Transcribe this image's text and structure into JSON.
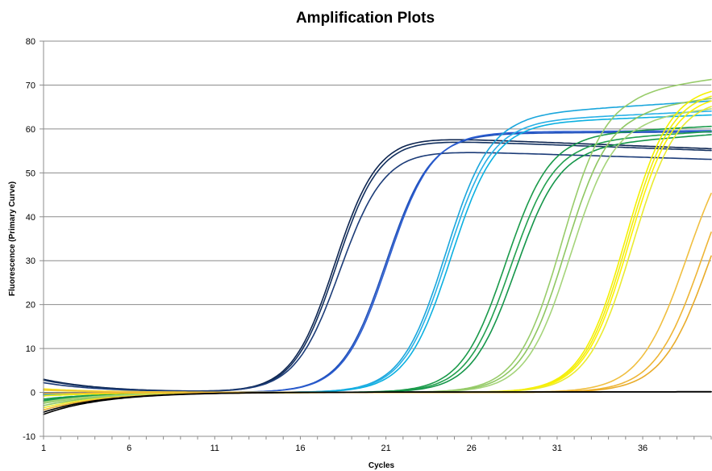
{
  "chart_data": {
    "type": "line",
    "title": "Amplification Plots",
    "xlabel": "Cycles",
    "ylabel": "Fluorescence (Primary Curve)",
    "xlim": [
      1,
      40
    ],
    "ylim": [
      -10,
      80
    ],
    "x_ticks": [
      1,
      6,
      11,
      16,
      21,
      26,
      31,
      36
    ],
    "y_ticks": [
      -10,
      0,
      10,
      20,
      30,
      40,
      50,
      60,
      70,
      80
    ],
    "grid": true,
    "legend": "none",
    "series": [
      {
        "color": "#0d2550",
        "ct": 18.0,
        "plateau": 58.2,
        "drift": -0.15,
        "start": 3.0,
        "slope": 1.25
      },
      {
        "color": "#13305f",
        "ct": 18.1,
        "plateau": 57.6,
        "drift": -0.14,
        "start": 2.8,
        "slope": 1.25
      },
      {
        "color": "#1c3c78",
        "ct": 18.3,
        "plateau": 55.2,
        "drift": -0.12,
        "start": 2.2,
        "slope": 1.3
      },
      {
        "color": "#1f4fb8",
        "ct": 21.0,
        "plateau": 59.0,
        "drift": 0.02,
        "start": -0.2,
        "slope": 1.3
      },
      {
        "color": "#2a5cd0",
        "ct": 21.1,
        "plateau": 59.3,
        "drift": 0.02,
        "start": -0.5,
        "slope": 1.3
      },
      {
        "color": "#1aa6dc",
        "ct": 24.5,
        "plateau": 63.5,
        "drift": 0.25,
        "start": -0.6,
        "slope": 1.3
      },
      {
        "color": "#28b0e6",
        "ct": 24.6,
        "plateau": 62.0,
        "drift": 0.18,
        "start": -0.8,
        "slope": 1.3
      },
      {
        "color": "#0bb0e0",
        "ct": 24.8,
        "plateau": 61.5,
        "drift": 0.15,
        "start": -0.4,
        "slope": 1.3
      },
      {
        "color": "#1a9a4a",
        "ct": 28.0,
        "plateau": 59.0,
        "drift": 0.2,
        "start": -1.5,
        "slope": 1.3
      },
      {
        "color": "#22a04f",
        "ct": 28.3,
        "plateau": 57.5,
        "drift": 0.25,
        "start": -2.0,
        "slope": 1.3
      },
      {
        "color": "#15964a",
        "ct": 28.6,
        "plateau": 56.5,
        "drift": 0.3,
        "start": -1.8,
        "slope": 1.3
      },
      {
        "color": "#98cc6a",
        "ct": 31.3,
        "plateau": 69.0,
        "drift": 0.5,
        "start": -2.5,
        "slope": 1.3
      },
      {
        "color": "#8fc762",
        "ct": 31.5,
        "plateau": 65.0,
        "drift": 0.45,
        "start": -3.0,
        "slope": 1.3
      },
      {
        "color": "#a5d47a",
        "ct": 31.8,
        "plateau": 63.0,
        "drift": 0.4,
        "start": -2.2,
        "slope": 1.3
      },
      {
        "color": "#f5f000",
        "ct": 35.0,
        "plateau": 70.0,
        "drift": 0.0,
        "start": 0.8,
        "slope": 1.3
      },
      {
        "color": "#f0ec10",
        "ct": 35.1,
        "plateau": 69.0,
        "drift": 0.0,
        "start": 0.5,
        "slope": 1.3
      },
      {
        "color": "#fff200",
        "ct": 35.2,
        "plateau": 68.0,
        "drift": 0.0,
        "start": -0.8,
        "slope": 1.3
      },
      {
        "color": "#eaeb30",
        "ct": 35.4,
        "plateau": 67.0,
        "drift": 0.0,
        "start": -3.5,
        "slope": 1.3
      },
      {
        "color": "#f0bf40",
        "ct": 38.6,
        "plateau": 62.0,
        "drift": 0.0,
        "start": 0.6,
        "slope": 1.4
      },
      {
        "color": "#eeb535",
        "ct": 39.5,
        "plateau": 62.0,
        "drift": 0.0,
        "start": -0.3,
        "slope": 1.4
      },
      {
        "color": "#e9ac2a",
        "ct": 39.9,
        "plateau": 60.0,
        "drift": 0.0,
        "start": -4.0,
        "slope": 1.4
      },
      {
        "color": "#000000",
        "ct": 99.0,
        "plateau": 0.0,
        "drift": 0.02,
        "start": -5.0,
        "slope": 1.0
      },
      {
        "color": "#000000",
        "ct": 99.0,
        "plateau": 0.0,
        "drift": 0.02,
        "start": -4.5,
        "slope": 1.0
      }
    ]
  }
}
